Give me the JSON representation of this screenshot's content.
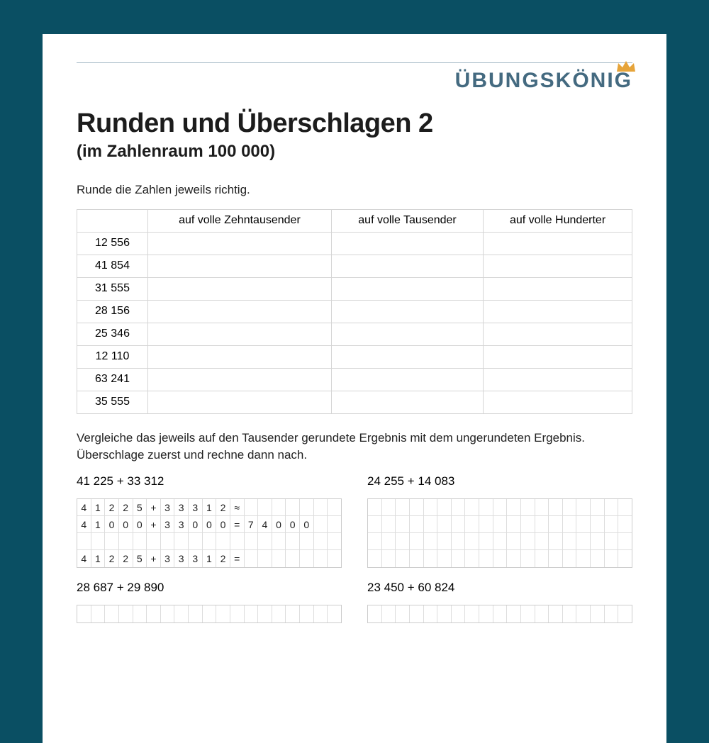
{
  "colors": {
    "page_bg": "#0a4f63",
    "paper_bg": "#ffffff",
    "brand_text": "#446a80",
    "crown": "#e6a43a",
    "text": "#1c1c1c",
    "rule": "#a8bcc8",
    "table_border": "#d5d5d5",
    "grid_border": "#dddddd"
  },
  "brand": {
    "name": "ÜBUNGSKÖNIG"
  },
  "title": "Runden und Überschlagen 2",
  "subtitle": "(im Zahlenraum 100 000)",
  "section1": {
    "instruction": "Runde die Zahlen jeweils richtig.",
    "table": {
      "columns": [
        "",
        "auf volle Zehntausender",
        "auf volle Tausender",
        "auf volle Hunderter"
      ],
      "rows": [
        [
          "12 556",
          "",
          "",
          ""
        ],
        [
          "41 854",
          "",
          "",
          ""
        ],
        [
          "31 555",
          "",
          "",
          ""
        ],
        [
          "28 156",
          "",
          "",
          ""
        ],
        [
          "25 346",
          "",
          "",
          ""
        ],
        [
          "12 110",
          "",
          "",
          ""
        ],
        [
          "63 241",
          "",
          "",
          ""
        ],
        [
          "35 555",
          "",
          "",
          ""
        ]
      ]
    }
  },
  "section2": {
    "instruction": "Vergleiche das jeweils auf den Tausender gerundete Ergebnis mit dem ungerundeten Ergebnis. Überschlage zuerst und rechne dann nach.",
    "grid_cols": 19,
    "problems": [
      {
        "label": "41 225 + 33 312",
        "rows": [
          [
            "4",
            "1",
            "2",
            "2",
            "5",
            "+",
            "3",
            "3",
            "3",
            "1",
            "2",
            "≈",
            "",
            "",
            "",
            "",
            "",
            "",
            ""
          ],
          [
            "4",
            "1",
            "0",
            "0",
            "0",
            "+",
            "3",
            "3",
            "0",
            "0",
            "0",
            "=",
            "7",
            "4",
            "0",
            "0",
            "0",
            "",
            ""
          ],
          [
            "",
            "",
            "",
            "",
            "",
            "",
            "",
            "",
            "",
            "",
            "",
            "",
            "",
            "",
            "",
            "",
            "",
            "",
            ""
          ],
          [
            "4",
            "1",
            "2",
            "2",
            "5",
            "+",
            "3",
            "3",
            "3",
            "1",
            "2",
            "=",
            "",
            "",
            "",
            "",
            "",
            "",
            ""
          ]
        ]
      },
      {
        "label": "24 255 + 14 083",
        "rows": [
          [
            "",
            "",
            "",
            "",
            "",
            "",
            "",
            "",
            "",
            "",
            "",
            "",
            "",
            "",
            "",
            "",
            "",
            "",
            ""
          ],
          [
            "",
            "",
            "",
            "",
            "",
            "",
            "",
            "",
            "",
            "",
            "",
            "",
            "",
            "",
            "",
            "",
            "",
            "",
            ""
          ],
          [
            "",
            "",
            "",
            "",
            "",
            "",
            "",
            "",
            "",
            "",
            "",
            "",
            "",
            "",
            "",
            "",
            "",
            "",
            ""
          ],
          [
            "",
            "",
            "",
            "",
            "",
            "",
            "",
            "",
            "",
            "",
            "",
            "",
            "",
            "",
            "",
            "",
            "",
            "",
            ""
          ]
        ]
      },
      {
        "label": "28 687 + 29 890",
        "rows": [
          [
            "",
            "",
            "",
            "",
            "",
            "",
            "",
            "",
            "",
            "",
            "",
            "",
            "",
            "",
            "",
            "",
            "",
            "",
            ""
          ]
        ]
      },
      {
        "label": "23 450 + 60 824",
        "rows": [
          [
            "",
            "",
            "",
            "",
            "",
            "",
            "",
            "",
            "",
            "",
            "",
            "",
            "",
            "",
            "",
            "",
            "",
            "",
            ""
          ]
        ]
      }
    ]
  }
}
